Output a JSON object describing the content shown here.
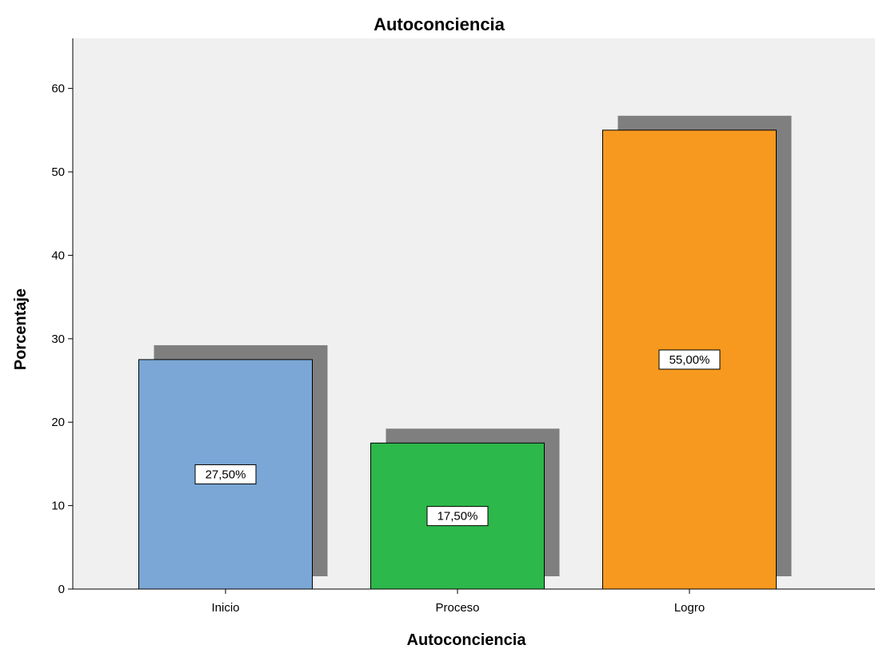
{
  "chart_data": {
    "type": "bar",
    "title": "Autoconciencia",
    "xlabel": "Autoconciencia",
    "ylabel": "Porcentaje",
    "categories": [
      "Inicio",
      "Proceso",
      "Logro"
    ],
    "values": [
      27.5,
      17.5,
      55.0
    ],
    "data_labels": [
      "27,50%",
      "17,50%",
      "55,00%"
    ],
    "ylim": [
      0,
      66
    ],
    "yticks": [
      0,
      10,
      20,
      30,
      40,
      50,
      60
    ],
    "grid": false,
    "legend": "none",
    "colors": {
      "bars": [
        "#7aa7d6",
        "#2db84b",
        "#f7991e"
      ],
      "shadow": "#7f7f7f",
      "plot_background": "#f0f0f0",
      "page_background": "#ffffff"
    }
  }
}
